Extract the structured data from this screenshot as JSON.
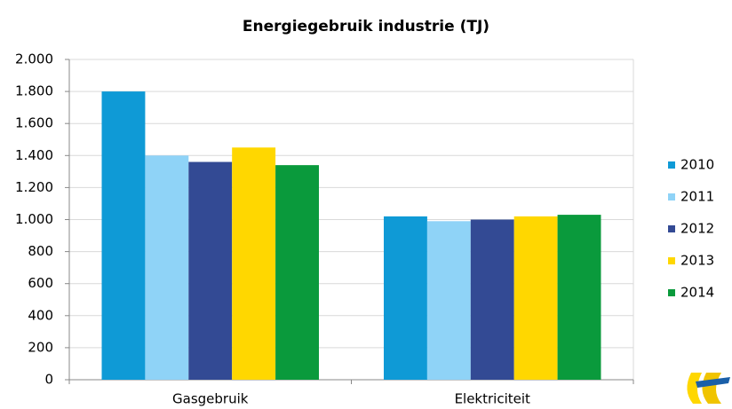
{
  "chart_data": {
    "type": "bar",
    "title": "Energiegebruik industrie  (TJ)",
    "categories": [
      "Gasgebruik",
      "Elektriciteit"
    ],
    "series": [
      {
        "name": "2010",
        "color": "#0f9ad6",
        "values": [
          1800,
          1020
        ]
      },
      {
        "name": "2011",
        "color": "#8fd3f7",
        "values": [
          1400,
          990
        ]
      },
      {
        "name": "2012",
        "color": "#334a94",
        "values": [
          1360,
          1000
        ]
      },
      {
        "name": "2013",
        "color": "#ffd700",
        "values": [
          1450,
          1020
        ]
      },
      {
        "name": "2014",
        "color": "#0a9a3c",
        "values": [
          1340,
          1030
        ]
      }
    ],
    "ylim": [
      0,
      2000
    ],
    "yticks": [
      0,
      200,
      400,
      600,
      800,
      {
        "value": 1000,
        "label": "1.000"
      },
      {
        "value": 1200,
        "label": "1.200"
      },
      {
        "value": 1400,
        "label": "1.400"
      },
      {
        "value": 1600,
        "label": "1.600"
      },
      {
        "value": 1800,
        "label": "1.800"
      },
      {
        "value": 2000,
        "label": "2.000"
      }
    ],
    "grid": true,
    "legend": "right"
  }
}
